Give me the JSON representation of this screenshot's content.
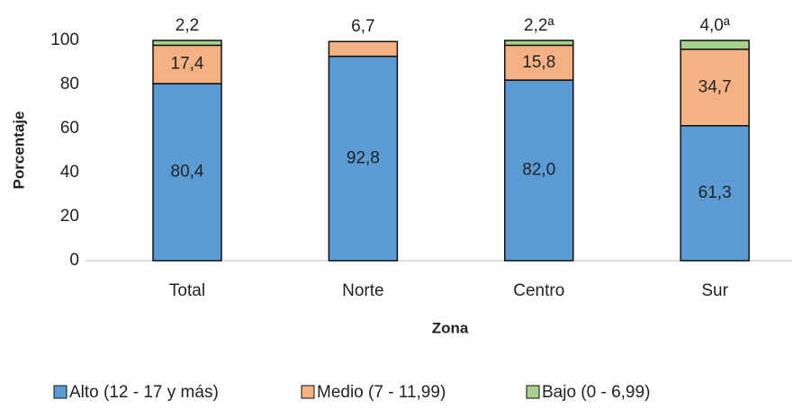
{
  "chart_data": {
    "type": "stacked_bar",
    "x_label": "Zona",
    "y_label": "Porcentaje",
    "categories": [
      "Total",
      "Norte",
      "Centro",
      "Sur"
    ],
    "series": [
      {
        "name": "Alto (12 - 17 y más)",
        "color": "#5b9bd5",
        "values": [
          80.4,
          92.8,
          82.0,
          61.3
        ],
        "value_labels": [
          "80,4",
          "92,8",
          "82,0",
          "61,3"
        ]
      },
      {
        "name": "Medio (7 - 11,99)",
        "color": "#f4b183",
        "values": [
          17.4,
          6.7,
          15.8,
          34.7
        ],
        "value_labels": [
          "17,4",
          "6,7",
          "15,8",
          "34,7"
        ]
      },
      {
        "name": "Bajo (0 - 6,99)",
        "color": "#a9d18e",
        "values": [
          2.2,
          null,
          2.2,
          4.0
        ],
        "value_labels": [
          "2,2",
          null,
          "2,2ª",
          "4,0ª"
        ]
      }
    ],
    "ylim": [
      0,
      100
    ],
    "yticks": [
      0,
      20,
      40,
      60,
      80,
      100
    ],
    "legend": "bottom"
  }
}
